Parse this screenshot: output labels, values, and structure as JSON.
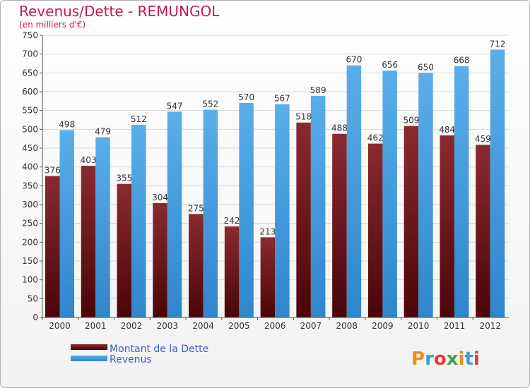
{
  "chart_data": {
    "type": "bar",
    "title": "Revenus/Dette - REMUNGOL",
    "subtitle": "(en milliers d'€)",
    "categories": [
      "2000",
      "2001",
      "2002",
      "2003",
      "2004",
      "2005",
      "2006",
      "2007",
      "2008",
      "2009",
      "2010",
      "2011",
      "2012"
    ],
    "series": [
      {
        "name": "Montant de la Dette",
        "color": "#6b0f14",
        "values": [
          376,
          403,
          355,
          304,
          275,
          242,
          213,
          518,
          488,
          462,
          509,
          484,
          459
        ]
      },
      {
        "name": "Revenus",
        "color": "#3d9ae0",
        "values": [
          498,
          479,
          512,
          547,
          552,
          570,
          567,
          589,
          670,
          656,
          650,
          668,
          712
        ]
      }
    ],
    "ylim": [
      0,
      750
    ],
    "yticks": [
      0,
      50,
      100,
      150,
      200,
      250,
      300,
      350,
      400,
      450,
      500,
      550,
      600,
      650,
      700,
      750
    ],
    "grid": true,
    "legend_position": "bottom-left"
  },
  "logo": {
    "text": "Proxiti"
  }
}
